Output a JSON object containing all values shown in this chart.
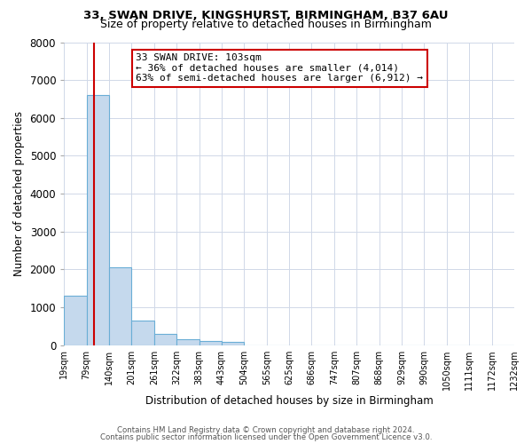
{
  "title1": "33, SWAN DRIVE, KINGSHURST, BIRMINGHAM, B37 6AU",
  "title2": "Size of property relative to detached houses in Birmingham",
  "xlabel": "Distribution of detached houses by size in Birmingham",
  "ylabel": "Number of detached properties",
  "bin_labels": [
    "19sqm",
    "79sqm",
    "140sqm",
    "201sqm",
    "261sqm",
    "322sqm",
    "383sqm",
    "443sqm",
    "504sqm",
    "565sqm",
    "625sqm",
    "686sqm",
    "747sqm",
    "807sqm",
    "868sqm",
    "929sqm",
    "990sqm",
    "1050sqm",
    "1111sqm",
    "1172sqm",
    "1232sqm"
  ],
  "bar_heights": [
    1300,
    6600,
    2050,
    640,
    300,
    150,
    100,
    85,
    0,
    0,
    0,
    0,
    0,
    0,
    0,
    0,
    0,
    0,
    0,
    0
  ],
  "bar_color": "#c5d9ed",
  "bar_edge_color": "#6aaed6",
  "property_line_bin": 1.35,
  "property_line_color": "#cc0000",
  "ylim": [
    0,
    8000
  ],
  "annotation_text": "33 SWAN DRIVE: 103sqm\n← 36% of detached houses are smaller (4,014)\n63% of semi-detached houses are larger (6,912) →",
  "annotation_box_color": "#ffffff",
  "annotation_box_edge": "#cc0000",
  "footer1": "Contains HM Land Registry data © Crown copyright and database right 2024.",
  "footer2": "Contains public sector information licensed under the Open Government Licence v3.0.",
  "bg_color": "#ffffff",
  "grid_color": "#d0d8e8",
  "title1_fontsize": 9.5,
  "title2_fontsize": 9
}
